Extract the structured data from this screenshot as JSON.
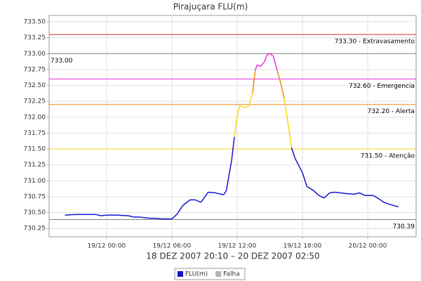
{
  "chart_data": {
    "type": "line",
    "title": "Pirajuçara FLU(m)",
    "xlabel": "18 DEZ 2007 20:10 – 20 DEZ 2007 02:50",
    "x": [
      "18/12 20:10",
      "18/12 21:00",
      "18/12 22:00",
      "18/12 23:00",
      "18/12 23:30",
      "19/12 00:00",
      "19/12 01:00",
      "19/12 02:00",
      "19/12 02:30",
      "19/12 03:00",
      "19/12 04:00",
      "19/12 04:30",
      "19/12 05:00",
      "19/12 06:00",
      "19/12 06:30",
      "19/12 07:00",
      "19/12 07:40",
      "19/12 08:10",
      "19/12 08:40",
      "19/12 09:00",
      "19/12 09:20",
      "19/12 10:00",
      "19/12 10:30",
      "19/12 10:45",
      "19/12 11:00",
      "19/12 11:30",
      "19/12 11:45",
      "19/12 12:00",
      "19/12 12:15",
      "19/12 12:30",
      "19/12 12:45",
      "19/12 13:05",
      "19/12 13:25",
      "19/12 13:40",
      "19/12 13:50",
      "19/12 14:10",
      "19/12 14:30",
      "19/12 14:45",
      "19/12 15:00",
      "19/12 15:20",
      "19/12 15:40",
      "19/12 16:00",
      "19/12 16:20",
      "19/12 16:40",
      "19/12 17:00",
      "19/12 17:20",
      "19/12 18:00",
      "19/12 18:25",
      "19/12 19:00",
      "19/12 19:30",
      "19/12 20:00",
      "19/12 20:30",
      "19/12 21:00",
      "19/12 22:00",
      "19/12 22:45",
      "19/12 23:15",
      "19/12 23:45",
      "20/12 00:30",
      "20/12 01:00",
      "20/12 01:30",
      "20/12 02:00",
      "20/12 02:50"
    ],
    "series": [
      {
        "name": "FLU(m)",
        "color": "#1414d2",
        "values": [
          730.46,
          730.47,
          730.47,
          730.47,
          730.45,
          730.46,
          730.46,
          730.45,
          730.43,
          730.43,
          730.41,
          730.41,
          730.4,
          730.4,
          730.48,
          730.61,
          730.7,
          730.7,
          730.66,
          730.74,
          730.82,
          730.81,
          730.79,
          730.78,
          730.84,
          731.33,
          731.69,
          732.02,
          732.18,
          732.16,
          732.15,
          732.18,
          732.38,
          732.74,
          732.82,
          732.8,
          732.87,
          732.98,
          733.0,
          732.96,
          732.74,
          732.54,
          732.29,
          731.91,
          731.52,
          731.35,
          731.13,
          730.91,
          730.85,
          730.77,
          730.73,
          730.81,
          730.82,
          730.8,
          730.79,
          730.81,
          730.77,
          730.77,
          730.72,
          730.66,
          730.63,
          730.59
        ]
      },
      {
        "name": "Falha",
        "color": "#b4b4b4",
        "values": [
          null,
          null,
          null,
          null,
          null,
          null,
          null,
          null,
          null,
          null,
          null,
          null,
          null,
          null,
          null,
          null,
          null,
          null,
          null,
          null,
          null,
          null,
          null,
          null,
          null,
          null,
          null,
          null,
          null,
          null,
          null,
          null,
          null,
          null,
          null,
          null,
          null,
          null,
          null,
          null,
          null,
          null,
          null,
          null,
          null,
          null,
          null,
          null,
          null,
          null,
          null,
          null,
          null,
          null,
          null,
          null,
          null,
          null,
          null,
          null,
          null,
          null
        ]
      }
    ],
    "xlim": [
      "18/12 18:43",
      "20/12 04:27"
    ],
    "xticks": [
      "19/12 00:00",
      "19/12 06:00",
      "19/12 12:00",
      "19/12 18:00",
      "20/12 00:00"
    ],
    "ylim": [
      730.12,
      733.6
    ],
    "yticks": [
      730.25,
      {
        "value": 730.5,
        "label": "730.50"
      },
      730.75,
      {
        "value": 731,
        "label": "731.00"
      },
      731.25,
      {
        "value": 731.5,
        "label": "731.50"
      },
      731.75,
      {
        "value": 732,
        "label": "732.00"
      },
      732.25,
      {
        "value": 732.5,
        "label": "732.50"
      },
      732.75,
      {
        "value": 733,
        "label": "733.00"
      },
      733.25,
      {
        "value": 733.5,
        "label": "733.50"
      }
    ],
    "grid": true,
    "thresholds": [
      {
        "value": 733.3,
        "label": "733.30 - Extravasamento",
        "color": "#c83232"
      },
      {
        "value": 732.6,
        "label": "732.60 - Emergencia",
        "color": "#e632e6"
      },
      {
        "value": 732.2,
        "label": "732.20 - Alerta",
        "color": "#f08c14"
      },
      {
        "value": 731.5,
        "label": "731.50 - Atenção",
        "color": "#f5dc14"
      }
    ],
    "max_line": {
      "value": 733,
      "label": "733.00",
      "color": "#808080"
    },
    "min_line": {
      "value": 730.39,
      "label": "730.39",
      "color": "#808080"
    },
    "legend": "bottom"
  }
}
